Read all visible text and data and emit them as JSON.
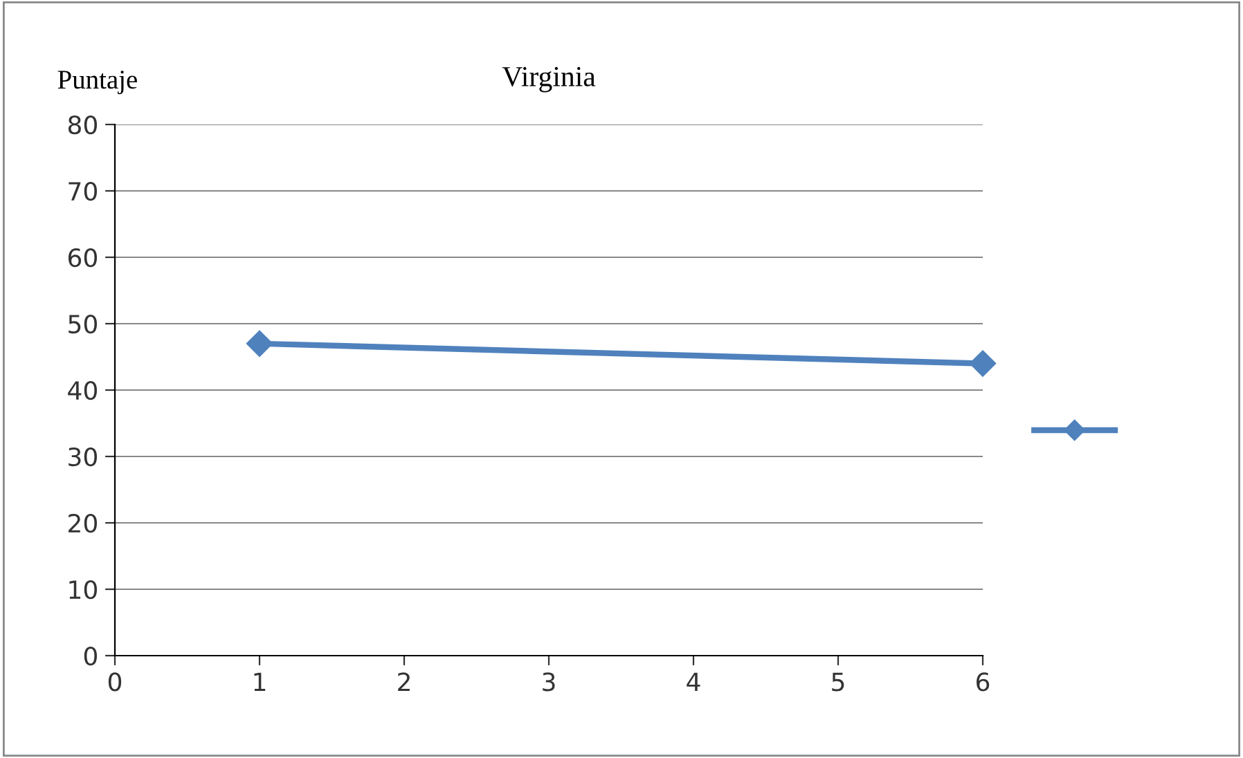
{
  "chart_data": {
    "type": "line",
    "title": "Virginia",
    "ylabel": "Puntaje",
    "x": [
      1,
      6
    ],
    "series": [
      {
        "color": "#4f81bd",
        "values": [
          47,
          44
        ]
      }
    ],
    "xlim": [
      0,
      6
    ],
    "xticks": [
      0,
      1,
      2,
      3,
      4,
      5,
      6
    ],
    "ylim": [
      0,
      80
    ],
    "yticks": [
      0,
      10,
      20,
      30,
      40,
      50,
      60,
      70,
      80
    ],
    "grid": "y",
    "marker": "diamond",
    "line_style": "solid"
  }
}
